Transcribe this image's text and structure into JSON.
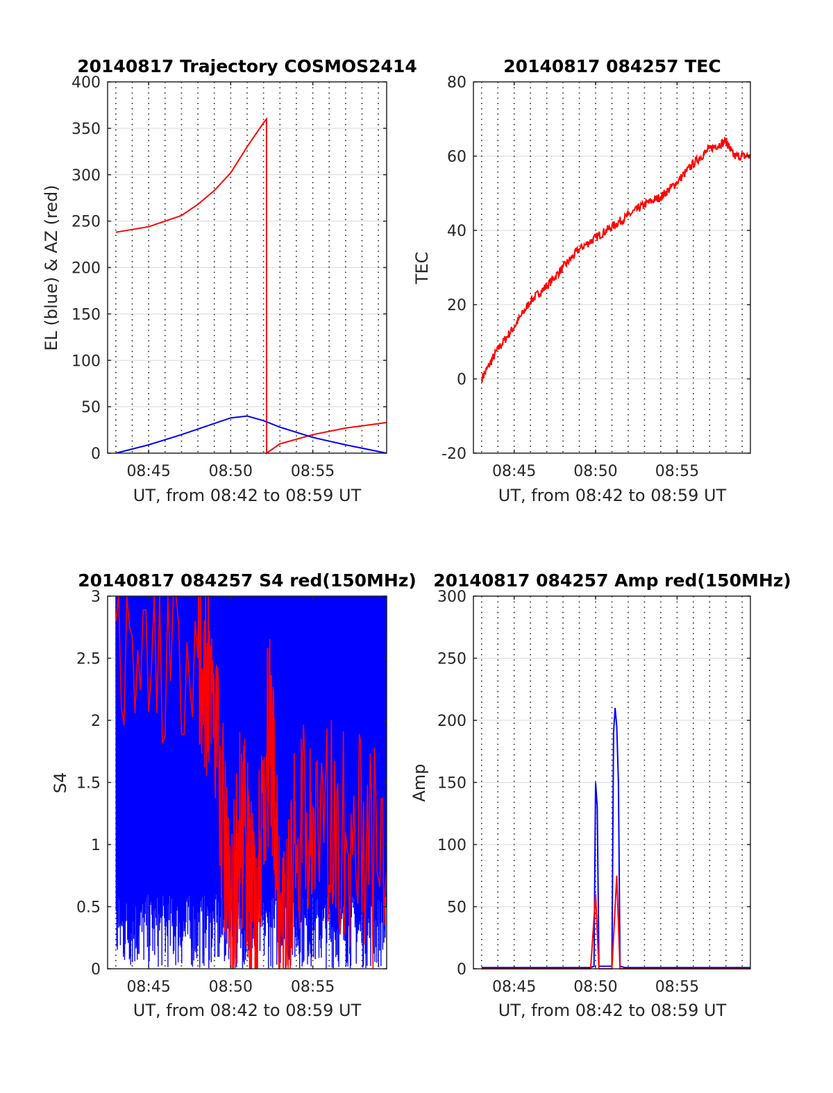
{
  "chart_data": [
    {
      "type": "line",
      "title": "20140817 Trajectory COSMOS2414",
      "xlabel": "UT, from 08:42 to 08:59 UT",
      "ylabel": "EL (blue) & AZ (red)",
      "xlim": [
        8.7083,
        8.9917
      ],
      "ylim": [
        0,
        400
      ],
      "xticks": [
        8.75,
        8.8333,
        8.9167
      ],
      "xtick_labels": [
        "08:45",
        "08:50",
        "08:55"
      ],
      "yticks": [
        0,
        50,
        100,
        150,
        200,
        250,
        300,
        350,
        400
      ],
      "ytick_labels": [
        "0",
        "50",
        "100",
        "150",
        "200",
        "250",
        "300",
        "350",
        "400"
      ],
      "grid": true,
      "series": [
        {
          "color": "#ff0000",
          "x": [
            8.7167,
            8.75,
            8.7833,
            8.8,
            8.8167,
            8.8333,
            8.85,
            8.8667,
            8.8697,
            8.8698,
            8.8833,
            8.9167,
            8.95,
            8.9917
          ],
          "values": [
            238,
            244,
            256,
            268,
            283,
            302,
            330,
            356,
            360,
            0,
            10,
            20,
            27,
            33
          ]
        },
        {
          "color": "#0000ff",
          "x": [
            8.7167,
            8.75,
            8.7833,
            8.8167,
            8.8333,
            8.85,
            8.8667,
            8.8833,
            8.9167,
            8.95,
            8.9917
          ],
          "values": [
            0,
            9,
            20,
            32,
            38,
            40,
            35,
            28,
            17,
            9,
            0
          ]
        }
      ]
    },
    {
      "type": "line",
      "title": "20140817 084257 TEC",
      "xlabel": "UT, from 08:42 to 08:59 UT",
      "ylabel": "TEC",
      "xlim": [
        8.7083,
        8.9917
      ],
      "ylim": [
        -20,
        80
      ],
      "xticks": [
        8.75,
        8.8333,
        8.9167
      ],
      "xtick_labels": [
        "08:45",
        "08:50",
        "08:55"
      ],
      "yticks": [
        -20,
        0,
        20,
        40,
        60,
        80
      ],
      "ytick_labels": [
        "-20",
        "0",
        "20",
        "40",
        "60",
        "80"
      ],
      "grid": true,
      "series": [
        {
          "color": "#ff0000",
          "x": [
            8.7167,
            8.7333,
            8.75,
            8.7667,
            8.7833,
            8.8,
            8.8167,
            8.8333,
            8.85,
            8.8667,
            8.8833,
            8.9,
            8.9167,
            8.9333,
            8.95,
            8.9667,
            8.975,
            8.9917
          ],
          "values": [
            0,
            8,
            14,
            21,
            25,
            30,
            35,
            38,
            41,
            44,
            47,
            49,
            53,
            58,
            62,
            64,
            60,
            60
          ]
        }
      ]
    },
    {
      "type": "line",
      "title": "20140817 084257 S4 red(150MHz)",
      "xlabel": "UT, from 08:42 to 08:59 UT",
      "ylabel": "S4",
      "xlim": [
        8.7083,
        8.9917
      ],
      "ylim": [
        0,
        3
      ],
      "xticks": [
        8.75,
        8.8333,
        8.9167
      ],
      "xtick_labels": [
        "08:45",
        "08:50",
        "08:55"
      ],
      "yticks": [
        0,
        0.5,
        1,
        1.5,
        2,
        2.5,
        3
      ],
      "ytick_labels": [
        "0",
        "0.5",
        "1",
        "1.5",
        "2",
        "2.5",
        "3"
      ],
      "grid": true,
      "series": [
        {
          "color": "#0000ff",
          "x": [
            8.7167,
            8.9917
          ],
          "band": [
            0,
            3
          ]
        },
        {
          "color": "#ff0000",
          "x": [
            8.7167,
            8.8,
            8.8167,
            8.8333,
            8.8417,
            8.85,
            8.8583,
            8.8667,
            8.875,
            8.8833,
            8.9,
            8.9167,
            8.95,
            8.9917
          ],
          "values": [
            2.8,
            2.5,
            2.2,
            0.1,
            1.2,
            1.0,
            0.1,
            1.5,
            1.9,
            0.0,
            1.0,
            1.3,
            1.1,
            0.8
          ]
        }
      ]
    },
    {
      "type": "line",
      "title": "20140817 084257 Amp red(150MHz)",
      "xlabel": "UT, from 08:42 to 08:59 UT",
      "ylabel": "Amp",
      "xlim": [
        8.7083,
        8.9917
      ],
      "ylim": [
        0,
        300
      ],
      "xticks": [
        8.75,
        8.8333,
        8.9167
      ],
      "xtick_labels": [
        "08:45",
        "08:50",
        "08:55"
      ],
      "yticks": [
        0,
        50,
        100,
        150,
        200,
        250,
        300
      ],
      "ytick_labels": [
        "0",
        "50",
        "100",
        "150",
        "200",
        "250",
        "300"
      ],
      "grid": true,
      "series": [
        {
          "color": "#0000ff",
          "x": [
            8.7167,
            8.8283,
            8.8317,
            8.8333,
            8.835,
            8.8367,
            8.85,
            8.8517,
            8.8533,
            8.855,
            8.8567,
            8.8583,
            8.8633,
            8.9917
          ],
          "values": [
            1,
            1,
            2,
            150,
            130,
            2,
            2,
            190,
            210,
            195,
            150,
            2,
            1,
            1
          ]
        },
        {
          "color": "#ff0000",
          "x": [
            8.7167,
            8.8283,
            8.8333,
            8.8367,
            8.85,
            8.855,
            8.8583,
            8.9917
          ],
          "values": [
            0,
            0,
            60,
            0,
            0,
            75,
            0,
            0
          ]
        }
      ]
    }
  ]
}
